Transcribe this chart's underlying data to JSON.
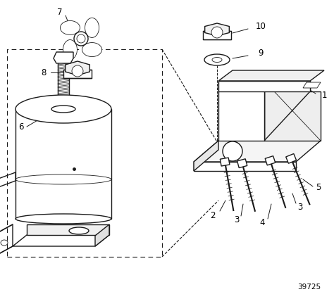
{
  "bg_color": "#ffffff",
  "line_color": "#1a1a1a",
  "fig_width": 4.74,
  "fig_height": 4.25,
  "dpi": 100,
  "part_number": "39725"
}
